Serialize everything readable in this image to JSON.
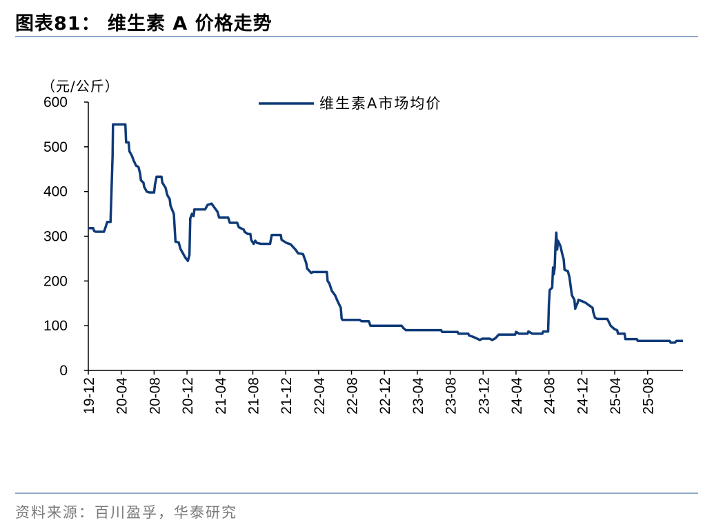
{
  "figure": {
    "title": "图表81：  维生素 A 价格走势",
    "source": "资料来源：百川盈孚，华泰研究"
  },
  "colors": {
    "series": "#0e3a78",
    "rule": "#8fa8c8"
  },
  "chart_data": {
    "type": "line",
    "ylabel": "（元/公斤）",
    "ylim": [
      0,
      600
    ],
    "yticks": [
      0,
      100,
      200,
      300,
      400,
      500,
      600
    ],
    "xlim": [
      0,
      72.3
    ],
    "xticks": [
      {
        "x": 0,
        "label": "19-12"
      },
      {
        "x": 4,
        "label": "20-04"
      },
      {
        "x": 8,
        "label": "20-08"
      },
      {
        "x": 12,
        "label": "20-12"
      },
      {
        "x": 16,
        "label": "21-04"
      },
      {
        "x": 20,
        "label": "21-08"
      },
      {
        "x": 24,
        "label": "21-12"
      },
      {
        "x": 28,
        "label": "22-04"
      },
      {
        "x": 32,
        "label": "22-08"
      },
      {
        "x": 36,
        "label": "22-12"
      },
      {
        "x": 40,
        "label": "23-04"
      },
      {
        "x": 44,
        "label": "23-08"
      },
      {
        "x": 48,
        "label": "23-12"
      },
      {
        "x": 52,
        "label": "24-04"
      },
      {
        "x": 56,
        "label": "24-08"
      },
      {
        "x": 60,
        "label": "24-12"
      },
      {
        "x": 64,
        "label": "25-04"
      },
      {
        "x": 68,
        "label": "25-08"
      }
    ],
    "grid": false,
    "legend_position": "top-center",
    "series": [
      {
        "name": "维生素A市场均价",
        "points": [
          [
            0,
            318
          ],
          [
            0.6,
            318
          ],
          [
            0.7,
            312
          ],
          [
            0.9,
            310
          ],
          [
            1.9,
            310
          ],
          [
            2.1,
            320
          ],
          [
            2.3,
            332
          ],
          [
            2.7,
            332
          ],
          [
            2.8,
            390
          ],
          [
            2.95,
            480
          ],
          [
            3.0,
            550
          ],
          [
            4.5,
            550
          ],
          [
            4.6,
            510
          ],
          [
            4.9,
            510
          ],
          [
            5.0,
            490
          ],
          [
            5.3,
            480
          ],
          [
            5.5,
            470
          ],
          [
            5.8,
            458
          ],
          [
            6.1,
            455
          ],
          [
            6.3,
            440
          ],
          [
            6.4,
            425
          ],
          [
            6.7,
            420
          ],
          [
            6.8,
            410
          ],
          [
            7.1,
            400
          ],
          [
            7.4,
            398
          ],
          [
            8.0,
            398
          ],
          [
            8.1,
            415
          ],
          [
            8.3,
            433
          ],
          [
            8.9,
            433
          ],
          [
            9.0,
            420
          ],
          [
            9.4,
            408
          ],
          [
            9.6,
            392
          ],
          [
            9.9,
            383
          ],
          [
            10.0,
            368
          ],
          [
            10.4,
            350
          ],
          [
            10.5,
            318
          ],
          [
            10.6,
            288
          ],
          [
            11.0,
            286
          ],
          [
            11.2,
            272
          ],
          [
            11.5,
            262
          ],
          [
            11.8,
            252
          ],
          [
            12.1,
            245
          ],
          [
            12.3,
            258
          ],
          [
            12.4,
            340
          ],
          [
            12.6,
            350
          ],
          [
            12.8,
            345
          ],
          [
            12.9,
            360
          ],
          [
            14.2,
            360
          ],
          [
            14.5,
            370
          ],
          [
            15.0,
            373
          ],
          [
            15.3,
            365
          ],
          [
            15.7,
            355
          ],
          [
            15.9,
            342
          ],
          [
            17.0,
            342
          ],
          [
            17.2,
            330
          ],
          [
            18.1,
            330
          ],
          [
            18.3,
            320
          ],
          [
            18.9,
            315
          ],
          [
            19.0,
            310
          ],
          [
            19.4,
            305
          ],
          [
            19.7,
            305
          ],
          [
            19.8,
            292
          ],
          [
            20.1,
            283
          ],
          [
            20.3,
            290
          ],
          [
            20.5,
            285
          ],
          [
            21.0,
            283
          ],
          [
            22.1,
            283
          ],
          [
            22.3,
            303
          ],
          [
            23.4,
            303
          ],
          [
            23.5,
            292
          ],
          [
            24.1,
            285
          ],
          [
            24.6,
            282
          ],
          [
            25.2,
            270
          ],
          [
            25.5,
            262
          ],
          [
            26.1,
            260
          ],
          [
            26.5,
            240
          ],
          [
            26.6,
            228
          ],
          [
            27.1,
            218
          ],
          [
            27.3,
            220
          ],
          [
            29.0,
            220
          ],
          [
            29.1,
            200
          ],
          [
            29.3,
            195
          ],
          [
            29.6,
            178
          ],
          [
            30.0,
            168
          ],
          [
            30.3,
            155
          ],
          [
            30.7,
            140
          ],
          [
            30.8,
            116
          ],
          [
            30.9,
            113
          ],
          [
            33.0,
            113
          ],
          [
            33.2,
            110
          ],
          [
            34.1,
            110
          ],
          [
            34.2,
            105
          ],
          [
            34.3,
            100
          ],
          [
            38.1,
            100
          ],
          [
            38.3,
            95
          ],
          [
            38.6,
            90
          ],
          [
            42.9,
            90
          ],
          [
            43.0,
            86
          ],
          [
            44.9,
            86
          ],
          [
            45.0,
            82
          ],
          [
            46.2,
            82
          ],
          [
            46.3,
            78
          ],
          [
            46.8,
            75
          ],
          [
            47.4,
            70
          ],
          [
            47.6,
            68
          ],
          [
            47.9,
            71
          ],
          [
            48.8,
            71
          ],
          [
            49.1,
            68
          ],
          [
            49.5,
            72
          ],
          [
            49.9,
            80
          ],
          [
            51.9,
            80
          ],
          [
            52.0,
            86
          ],
          [
            52.4,
            82
          ],
          [
            53.4,
            82
          ],
          [
            53.5,
            87
          ],
          [
            54.0,
            82
          ],
          [
            55.2,
            82
          ],
          [
            55.3,
            87
          ],
          [
            55.9,
            87
          ],
          [
            56.0,
            150
          ],
          [
            56.1,
            180
          ],
          [
            56.4,
            185
          ],
          [
            56.5,
            230
          ],
          [
            56.6,
            215
          ],
          [
            56.7,
            230
          ],
          [
            56.8,
            280
          ],
          [
            56.9,
            308
          ],
          [
            57.0,
            270
          ],
          [
            57.1,
            290
          ],
          [
            57.4,
            278
          ],
          [
            57.6,
            262
          ],
          [
            57.8,
            248
          ],
          [
            57.9,
            225
          ],
          [
            58.3,
            222
          ],
          [
            58.5,
            208
          ],
          [
            58.7,
            180
          ],
          [
            58.8,
            168
          ],
          [
            59.1,
            158
          ],
          [
            59.2,
            138
          ],
          [
            59.5,
            152
          ],
          [
            59.6,
            158
          ],
          [
            60.4,
            152
          ],
          [
            61.3,
            140
          ],
          [
            61.4,
            130
          ],
          [
            61.6,
            118
          ],
          [
            61.9,
            115
          ],
          [
            63.1,
            115
          ],
          [
            63.3,
            108
          ],
          [
            63.5,
            100
          ],
          [
            64.0,
            92
          ],
          [
            64.3,
            90
          ],
          [
            64.4,
            82
          ],
          [
            65.2,
            82
          ],
          [
            65.3,
            70
          ],
          [
            66.7,
            70
          ],
          [
            66.8,
            66
          ],
          [
            70.7,
            66
          ],
          [
            70.8,
            62
          ],
          [
            71.3,
            62
          ],
          [
            71.5,
            66
          ],
          [
            72.3,
            66
          ]
        ]
      }
    ]
  }
}
